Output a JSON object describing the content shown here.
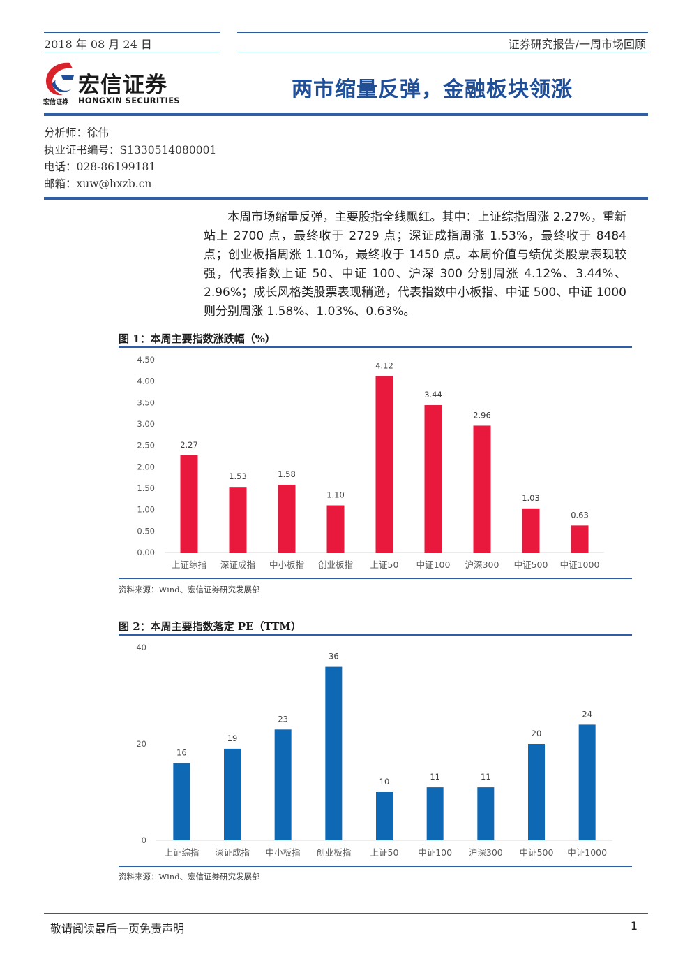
{
  "header": {
    "date": "2018 年 08 月 24 日",
    "report_type": "证券研究报告/一周市场回顾"
  },
  "logo": {
    "name_cn": "宏信证券",
    "name_en": "HONGXIN SECURITIES",
    "small_cn": "宏信证券"
  },
  "title": "两市缩量反弹，金融板块领涨",
  "analyst": {
    "name": "分析师：徐伟",
    "cert": "执业证书编号：S1330514080001",
    "phone": "电话：028-86199181",
    "email": "邮箱：xuw@hxzb.cn"
  },
  "summary": "本周市场缩量反弹，主要股指全线飘红。其中：上证综指周涨 2.27%，重新站上 2700 点，最终收于 2729 点；深证成指周涨 1.53%，最终收于 8484 点；创业板指周涨 1.10%，最终收于 1450 点。本周价值与绩优类股票表现较强，代表指数上证 50、中证 100、沪深 300 分别周涨 4.12%、3.44%、2.96%；成长风格类股票表现稍逊，代表指数中小板指、中证 500、中证 1000 则分别周涨 1.58%、1.03%、0.63%。",
  "figure1": {
    "title": "图 1：本周主要指数涨跌幅（%）",
    "source": "资料来源：Wind、宏信证券研究发展部"
  },
  "figure2": {
    "title": "图 2：本周主要指数落定 PE（TTM）",
    "source": "资料来源：Wind、宏信证券研究发展部"
  },
  "chart_data": [
    {
      "type": "bar",
      "categories": [
        "上证综指",
        "深证成指",
        "中小板指",
        "创业板指",
        "上证50",
        "中证100",
        "沪深300",
        "中证500",
        "中证1000"
      ],
      "values": [
        2.27,
        1.53,
        1.58,
        1.1,
        4.12,
        3.44,
        2.96,
        1.03,
        0.63
      ],
      "value_labels": [
        "2.27",
        "1.53",
        "1.58",
        "1.10",
        "4.12",
        "3.44",
        "2.96",
        "1.03",
        "0.63"
      ],
      "ylim": [
        0,
        4.5
      ],
      "yticks": [
        "0.00",
        "0.50",
        "1.00",
        "1.50",
        "2.00",
        "2.50",
        "3.00",
        "3.50",
        "4.00",
        "4.50"
      ],
      "color": "#e8193c",
      "grid": false
    },
    {
      "type": "bar",
      "categories": [
        "上证综指",
        "深证成指",
        "中小板指",
        "创业板指",
        "上证50",
        "中证100",
        "沪深300",
        "中证500",
        "中证1000"
      ],
      "values": [
        16,
        19,
        23,
        36,
        10,
        11,
        11,
        20,
        24
      ],
      "value_labels": [
        "16",
        "19",
        "23",
        "36",
        "10",
        "11",
        "11",
        "20",
        "24"
      ],
      "ylim": [
        0,
        40
      ],
      "yticks": [
        "0",
        "20",
        "40"
      ],
      "color": "#0f68b4",
      "grid": false
    }
  ],
  "footer": {
    "disclaimer": "敬请阅读最后一页免责声明",
    "page": "1"
  }
}
